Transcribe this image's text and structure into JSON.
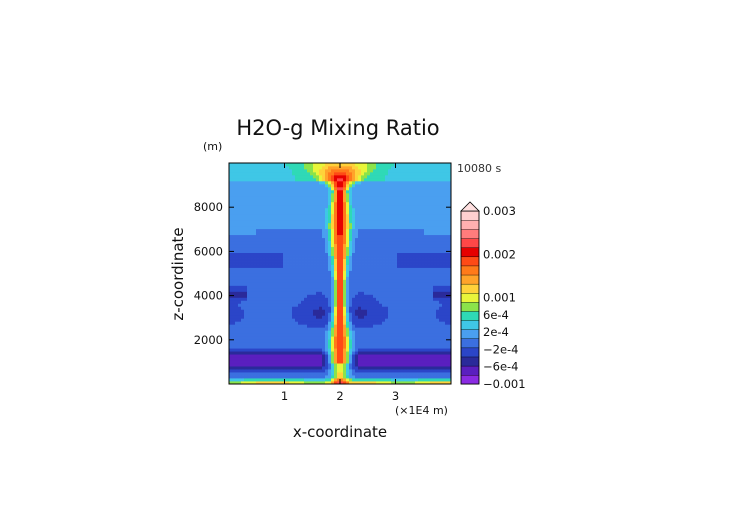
{
  "chart_data": {
    "type": "heatmap",
    "title": "H2O-g Mixing Ratio",
    "xlabel": "x-coordinate",
    "ylabel": "z-coordinate",
    "x_unit": "(×1E4 m)",
    "y_unit": "(m)",
    "time_label": "10080 s",
    "xlim": [
      0,
      4
    ],
    "ylim": [
      0,
      10000
    ],
    "x_ticks": [
      {
        "value": 1,
        "label": "1"
      },
      {
        "value": 2,
        "label": "2"
      },
      {
        "value": 3,
        "label": "3"
      }
    ],
    "y_ticks": [
      {
        "value": 2000,
        "label": "2000"
      },
      {
        "value": 4000,
        "label": "4000"
      },
      {
        "value": 6000,
        "label": "6000"
      },
      {
        "value": 8000,
        "label": "8000"
      }
    ],
    "colorbar": {
      "labels": [
        {
          "value": 0.003,
          "label": "0.003"
        },
        {
          "value": 0.002,
          "label": "0.002"
        },
        {
          "value": 0.001,
          "label": "0.001"
        },
        {
          "value": 0.0006,
          "label": "6e-4"
        },
        {
          "value": 0.0002,
          "label": "2e-4"
        },
        {
          "value": -0.0002,
          "label": "−2e-4"
        },
        {
          "value": -0.0006,
          "label": "−6e-4"
        },
        {
          "value": -0.001,
          "label": "−0.001"
        }
      ],
      "colors": [
        "#8a2be2",
        "#5a1fbf",
        "#2a2a9a",
        "#2b45c8",
        "#3b6fe0",
        "#4a9ff0",
        "#3fc7e6",
        "#2fd9b6",
        "#8be34a",
        "#e9f53a",
        "#ffd23a",
        "#ffa32a",
        "#ff7a1a",
        "#ff4a16",
        "#e60000",
        "#ff4747",
        "#ff7c7c",
        "#ffb0b0",
        "#ffd0d0"
      ],
      "extend_max": true
    },
    "features": {
      "plume_center_x": 2.0,
      "description_values": "central moist plume (positive anomaly, max ~0.002) from surface to ~9500 m, spreading at top; negative anomalies (~-6e-4 to -0.001) in horizontal layers near 800-1500 m and 2500-4200 m; strong positive near-surface layer below 300 m"
    }
  }
}
